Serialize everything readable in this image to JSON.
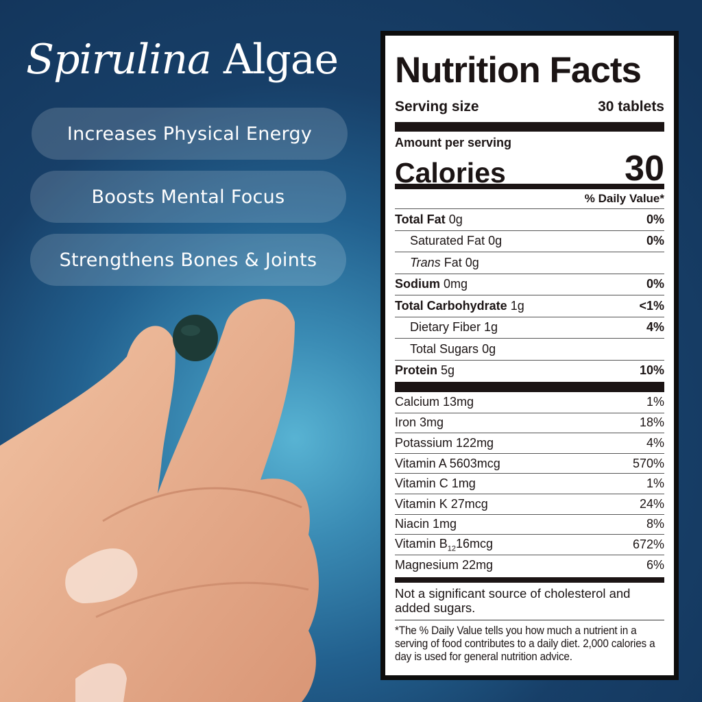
{
  "headline": {
    "italic": "Spirulina",
    "regular": "Algae"
  },
  "benefits": [
    "Increases Physical Energy",
    "Boosts Mental Focus",
    "Strengthens Bones & Joints"
  ],
  "label": {
    "title": "Nutrition Facts",
    "serving_label": "Serving size",
    "serving_value": "30 tablets",
    "amount_per_serving": "Amount per serving",
    "calories_label": "Calories",
    "calories_value": "30",
    "dv_header": "% Daily Value*",
    "macros": [
      {
        "name": "Total Fat",
        "amount": "0g",
        "dv": "0%",
        "bold": true
      },
      {
        "name": "Saturated Fat",
        "amount": "0g",
        "dv": "0%",
        "indent": true
      },
      {
        "name": "Trans",
        "name2": "Fat",
        "amount": "0g",
        "dv": "",
        "indent": true
      },
      {
        "name": "Sodium",
        "amount": "0mg",
        "dv": "0%",
        "bold": true
      },
      {
        "name": "Total Carbohydrate",
        "amount": "1g",
        "dv": "<1%",
        "bold": true
      },
      {
        "name": "Dietary Fiber",
        "amount": "1g",
        "dv": "4%",
        "indent": true
      },
      {
        "name": "Total Sugars",
        "amount": "0g",
        "dv": "",
        "indent": true
      },
      {
        "name": "Protein",
        "amount": "5g",
        "dv": "10%",
        "bold": true
      }
    ],
    "micros": [
      {
        "name": "Calcium 13mg",
        "dv": "1%"
      },
      {
        "name": "Iron 3mg",
        "dv": "18%"
      },
      {
        "name": "Potassium 122mg",
        "dv": "4%"
      },
      {
        "name": "Vitamin A 5603mcg",
        "dv": "570%"
      },
      {
        "name": "Vitamin C 1mg",
        "dv": "1%"
      },
      {
        "name": "Vitamin K 27mcg",
        "dv": "24%"
      },
      {
        "name": "Niacin 1mg",
        "dv": "8%"
      },
      {
        "name": "Vitamin B",
        "sub": "12",
        "amount": "16mcg",
        "dv": "672%"
      },
      {
        "name": "Magnesium 22mg",
        "dv": "6%"
      }
    ],
    "note": "Not a significant source of cholesterol and added sugars.",
    "footnote": "*The % Daily Value tells you how much a nutrient in a serving of food contributes to a daily diet. 2,000 calories a day is used for general nutrition advice."
  }
}
